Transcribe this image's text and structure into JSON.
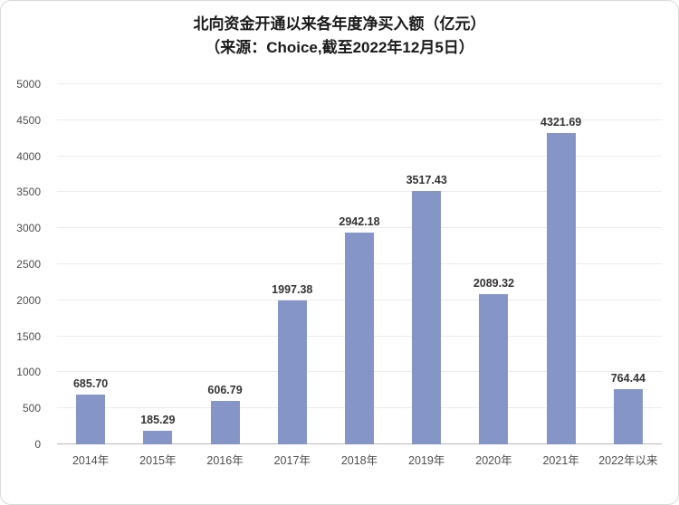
{
  "header": {
    "title": "北向资金开通以来各年度净买入额（亿元）",
    "subtitle": "（来源：Choice,截至2022年12月5日）"
  },
  "chart_data": {
    "type": "bar",
    "title": "北向资金开通以来各年度净买入额（亿元）",
    "subtitle": "（来源：Choice,截至2022年12月5日）",
    "categories": [
      "2014年",
      "2015年",
      "2016年",
      "2017年",
      "2018年",
      "2019年",
      "2020年",
      "2021年",
      "2022年以来"
    ],
    "values": [
      685.7,
      185.29,
      606.79,
      1997.38,
      2942.18,
      3517.43,
      2089.32,
      4321.69,
      764.44
    ],
    "value_labels": [
      "685.70",
      "185.29",
      "606.79",
      "1997.38",
      "2942.18",
      "3517.43",
      "2089.32",
      "4321.69",
      "764.44"
    ],
    "xlabel": "",
    "ylabel": "",
    "ylim": [
      0,
      5000
    ],
    "yticks": [
      0,
      500,
      1000,
      1500,
      2000,
      2500,
      3000,
      3500,
      4000,
      4500,
      5000
    ],
    "grid": true,
    "legend": false,
    "bar_color": "#8595c8",
    "label_color": "#333333"
  }
}
